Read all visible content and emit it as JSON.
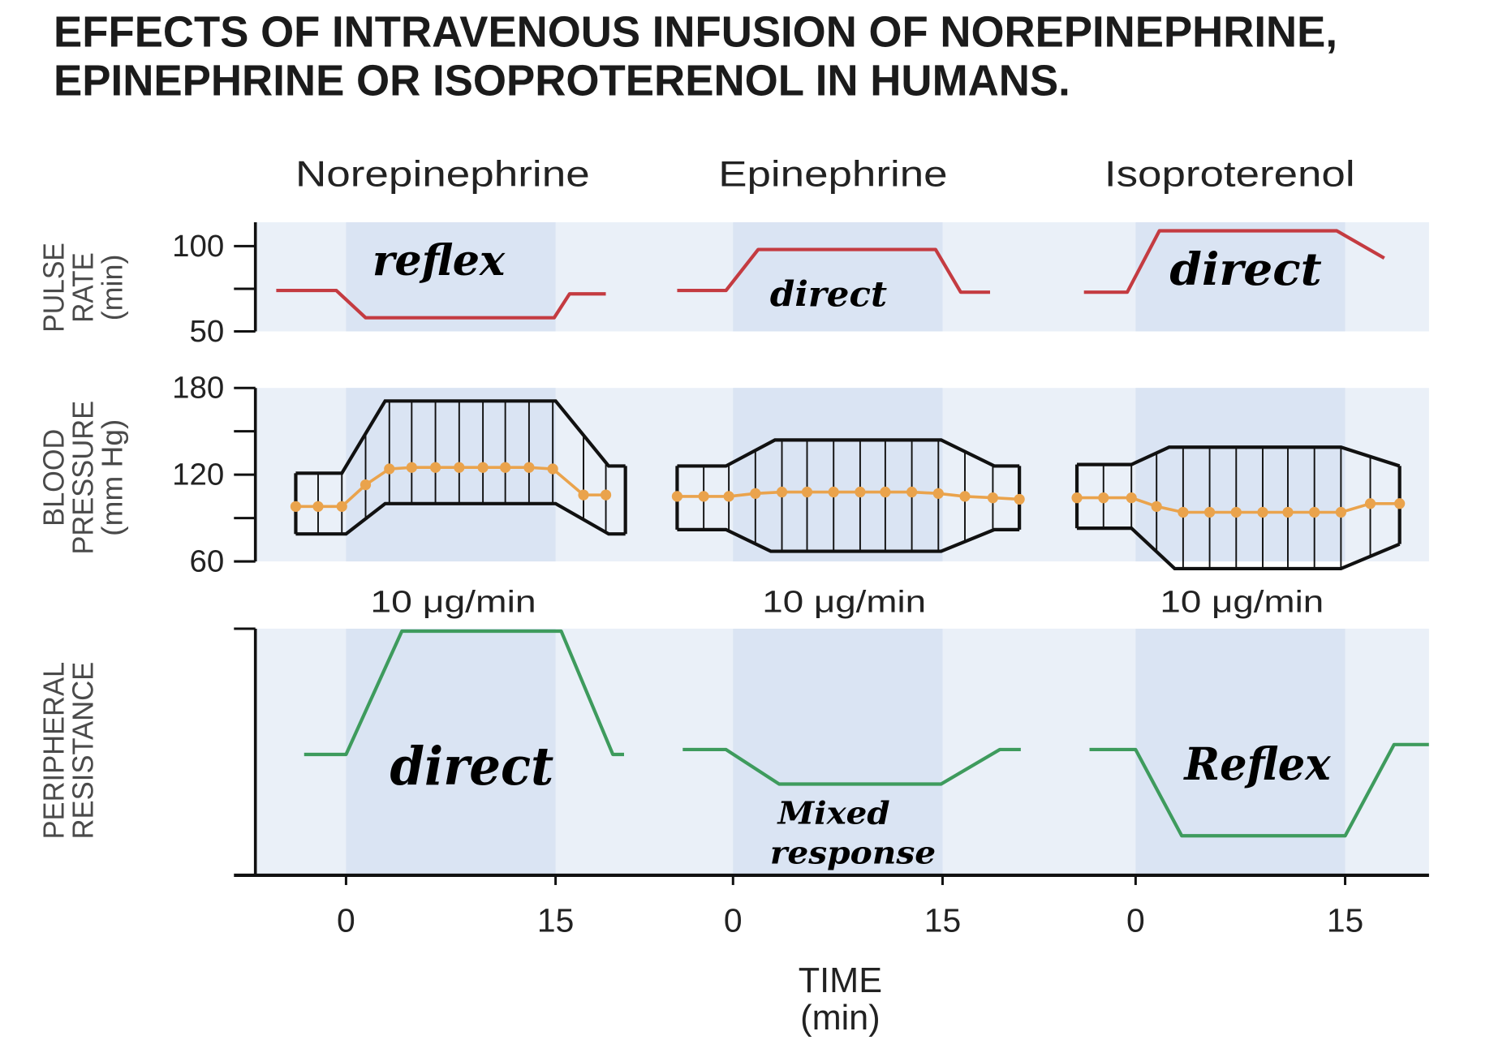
{
  "chart_data": {
    "type": "line",
    "title": [
      "EFFECTS OF INTRAVENOUS INFUSION OF NOREPINEPHRINE,",
      "EPINEPHRINE OR ISOPROTERENOL IN HUMANS."
    ],
    "drugs": [
      "Norepinephrine",
      "Epinephrine",
      "Isoproterenol"
    ],
    "dose_labels": [
      "10 μg/min",
      "10 μg/min",
      "10 μg/min"
    ],
    "infusion_window": [
      0,
      15
    ],
    "xlabel": [
      "TIME",
      "(min)"
    ],
    "xticks": [
      0,
      15
    ],
    "colors": {
      "pulse_rate": "#c43b41",
      "peripheral_resistance": "#3e9b5d",
      "bp_mean": "#eaa34c",
      "bp_range": "#111111",
      "axis": "#111111",
      "panel_bg": "#eaf0f8",
      "infusion_shade": "#dae4f3"
    },
    "panels": {
      "pulse_rate": {
        "ylabel": [
          "PULSE",
          "RATE",
          "(min)"
        ],
        "ylim": [
          50,
          114
        ],
        "yticks_major": [
          50,
          100
        ],
        "yticks_minor": [
          75
        ],
        "series": [
          {
            "points": [
              [
                -5,
                74
              ],
              [
                -0.7,
                74
              ],
              [
                1.4,
                58
              ],
              [
                14.9,
                58
              ],
              [
                16,
                72
              ],
              [
                18.6,
                72
              ]
            ]
          },
          {
            "points": [
              [
                -4,
                74
              ],
              [
                -0.5,
                74
              ],
              [
                1.8,
                98
              ],
              [
                14.5,
                98
              ],
              [
                16.3,
                73
              ],
              [
                18.4,
                73
              ]
            ]
          },
          {
            "points": [
              [
                -3.7,
                73
              ],
              [
                -0.6,
                73
              ],
              [
                1.7,
                109
              ],
              [
                14.4,
                109
              ],
              [
                17.8,
                93
              ]
            ]
          }
        ]
      },
      "blood_pressure": {
        "ylabel": [
          "BLOOD",
          "PRESSURE",
          "(mm Hg)"
        ],
        "ylim": [
          60,
          180
        ],
        "yticks_major": [
          60,
          120,
          180
        ],
        "yticks_minor": [
          90,
          150
        ],
        "series": [
          {
            "systolic": [
              [
                -3.6,
                121
              ],
              [
                -0.3,
                121
              ],
              [
                2.8,
                171
              ],
              [
                15,
                171
              ],
              [
                18.8,
                126
              ],
              [
                20,
                126
              ]
            ],
            "diastolic": [
              [
                -3.6,
                79
              ],
              [
                0,
                79
              ],
              [
                2.8,
                100
              ],
              [
                15,
                100
              ],
              [
                18.8,
                79
              ],
              [
                20,
                79
              ]
            ],
            "mean": [
              [
                -3.6,
                98
              ],
              [
                -2,
                98
              ],
              [
                -0.3,
                98
              ],
              [
                1.4,
                113
              ],
              [
                3.1,
                124
              ],
              [
                4.7,
                125
              ],
              [
                6.4,
                125
              ],
              [
                8.1,
                125
              ],
              [
                9.8,
                125
              ],
              [
                11.4,
                125
              ],
              [
                13.1,
                125
              ],
              [
                14.8,
                124
              ],
              [
                17,
                106
              ],
              [
                18.6,
                106
              ]
            ]
          },
          {
            "systolic": [
              [
                -4,
                126
              ],
              [
                -0.5,
                126
              ],
              [
                3,
                144
              ],
              [
                14.9,
                144
              ],
              [
                18.7,
                126
              ],
              [
                20.5,
                126
              ]
            ],
            "diastolic": [
              [
                -4,
                82
              ],
              [
                -0.5,
                82
              ],
              [
                2.7,
                67
              ],
              [
                14.9,
                67
              ],
              [
                18.7,
                82
              ],
              [
                20.5,
                82
              ]
            ],
            "mean": [
              [
                -4,
                105
              ],
              [
                -2.1,
                105
              ],
              [
                -0.3,
                105
              ],
              [
                1.6,
                107
              ],
              [
                3.5,
                108
              ],
              [
                5.3,
                108
              ],
              [
                7.2,
                108
              ],
              [
                9.1,
                108
              ],
              [
                10.9,
                108
              ],
              [
                12.8,
                108
              ],
              [
                14.7,
                107
              ],
              [
                16.6,
                105
              ],
              [
                18.6,
                104
              ],
              [
                20.5,
                103
              ]
            ]
          },
          {
            "systolic": [
              [
                -4.2,
                127
              ],
              [
                -0.3,
                127
              ],
              [
                2.4,
                139
              ],
              [
                14.7,
                139
              ],
              [
                18.9,
                126
              ]
            ],
            "diastolic": [
              [
                -4.2,
                83
              ],
              [
                -0.3,
                83
              ],
              [
                2.8,
                55
              ],
              [
                14.7,
                55
              ],
              [
                18.9,
                72
              ]
            ],
            "mean": [
              [
                -4.2,
                104
              ],
              [
                -2.3,
                104
              ],
              [
                -0.3,
                104
              ],
              [
                1.5,
                98
              ],
              [
                3.4,
                94
              ],
              [
                5.3,
                94
              ],
              [
                7.2,
                94
              ],
              [
                9.1,
                94
              ],
              [
                10.9,
                94
              ],
              [
                12.8,
                94
              ],
              [
                14.7,
                94
              ],
              [
                16.8,
                100
              ],
              [
                18.9,
                100
              ]
            ]
          }
        ]
      },
      "peripheral_resistance": {
        "ylabel": [
          "PERIPHERAL",
          "RESISTANCE"
        ],
        "ylim": [
          0,
          100
        ],
        "yticks_major": [],
        "yticks_minor": [
          100
        ],
        "series": [
          {
            "points": [
              [
                -3,
                49
              ],
              [
                0,
                49
              ],
              [
                4,
                99
              ],
              [
                15.4,
                99
              ],
              [
                19.1,
                49
              ],
              [
                19.9,
                49
              ]
            ]
          },
          {
            "points": [
              [
                -3.6,
                51
              ],
              [
                -0.5,
                51
              ],
              [
                3.3,
                37
              ],
              [
                14.9,
                37
              ],
              [
                19.1,
                51
              ],
              [
                20.6,
                51
              ]
            ]
          },
          {
            "points": [
              [
                -3.3,
                51
              ],
              [
                0,
                51
              ],
              [
                3.3,
                16
              ],
              [
                15,
                16
              ],
              [
                18.5,
                53
              ],
              [
                21,
                53
              ]
            ]
          }
        ]
      }
    },
    "annotations": {
      "norepinephrine_pulse_rate": "reflex",
      "epinephrine_pulse_rate": "direct",
      "isoproterenol_pulse_rate": "direct",
      "norepinephrine_resistance": "direct",
      "epinephrine_resistance": [
        "Mixed",
        "response"
      ],
      "isoproterenol_resistance": "Reflex"
    }
  }
}
